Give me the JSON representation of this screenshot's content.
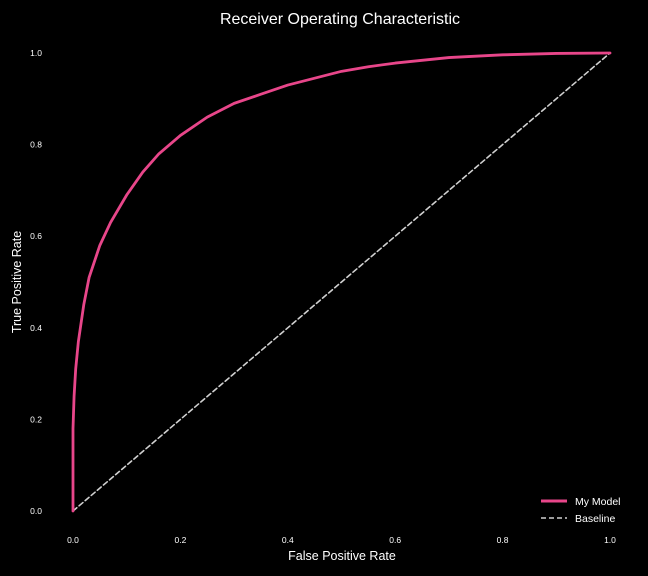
{
  "chart_data": {
    "type": "line",
    "title": "Receiver Operating Characteristic",
    "xlabel": "False Positive Rate",
    "ylabel": "True Positive Rate",
    "xlim": [
      0.0,
      1.0
    ],
    "ylim": [
      0.0,
      1.0
    ],
    "xticks": [
      "0.0",
      "0.2",
      "0.4",
      "0.6",
      "0.8",
      "1.0"
    ],
    "yticks": [
      "0.0",
      "0.2",
      "0.4",
      "0.6",
      "0.8",
      "1.0"
    ],
    "grid": false,
    "legend_position": "bottom-right",
    "series": [
      {
        "name": "My Model",
        "color": "#e8468a",
        "style": "solid",
        "x": [
          0.0,
          0.0,
          0.002,
          0.005,
          0.01,
          0.02,
          0.03,
          0.05,
          0.07,
          0.1,
          0.13,
          0.16,
          0.2,
          0.25,
          0.3,
          0.35,
          0.4,
          0.45,
          0.5,
          0.55,
          0.6,
          0.7,
          0.8,
          0.9,
          1.0
        ],
        "y": [
          0.0,
          0.18,
          0.25,
          0.31,
          0.37,
          0.45,
          0.51,
          0.58,
          0.63,
          0.69,
          0.74,
          0.78,
          0.82,
          0.86,
          0.89,
          0.91,
          0.93,
          0.945,
          0.96,
          0.97,
          0.978,
          0.99,
          0.996,
          0.999,
          1.0
        ]
      },
      {
        "name": "Baseline",
        "color": "#d0d0d0",
        "style": "dashed",
        "x": [
          0.0,
          1.0
        ],
        "y": [
          0.0,
          1.0
        ]
      }
    ]
  }
}
